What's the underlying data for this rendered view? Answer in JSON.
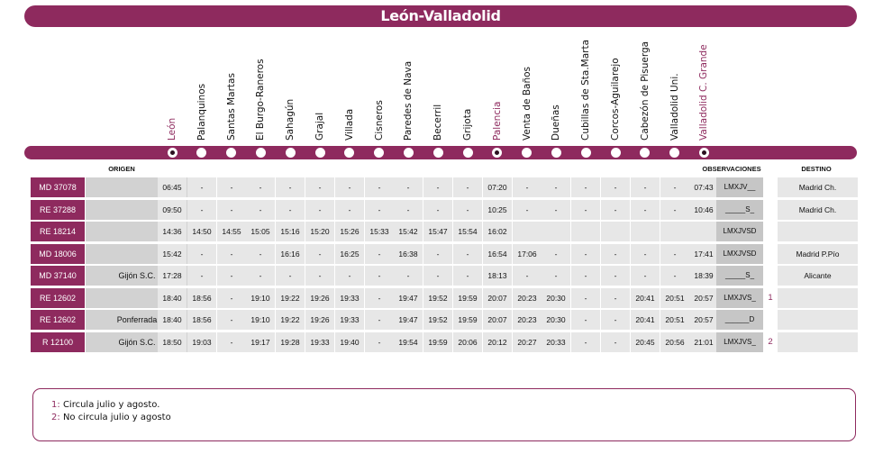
{
  "title": "León-Valladolid",
  "stations": [
    {
      "name": "León",
      "main": true
    },
    {
      "name": "Palanquinos",
      "main": false
    },
    {
      "name": "Santas Martas",
      "main": false
    },
    {
      "name": "El Burgo-Raneros",
      "main": false
    },
    {
      "name": "Sahagún",
      "main": false
    },
    {
      "name": "Grajal",
      "main": false
    },
    {
      "name": "Villada",
      "main": false
    },
    {
      "name": "Cisneros",
      "main": false
    },
    {
      "name": "Paredes de Nava",
      "main": false
    },
    {
      "name": "Becerril",
      "main": false
    },
    {
      "name": "Grijota",
      "main": false
    },
    {
      "name": "Palencia",
      "main": true
    },
    {
      "name": "Venta de Baños",
      "main": false
    },
    {
      "name": "Dueñas",
      "main": false
    },
    {
      "name": "Cubillas de Sta.Marta",
      "main": false
    },
    {
      "name": "Corcos-Aguilarejo",
      "main": false
    },
    {
      "name": "Cabezón de Pisuerga",
      "main": false
    },
    {
      "name": "Valladolid Uni.",
      "main": false
    },
    {
      "name": "Valladolid C. Grande",
      "main": true
    }
  ],
  "headers": {
    "origin": "ORIGEN",
    "observations": "OBSERVACIONES",
    "destination": "DESTINO"
  },
  "rows": [
    {
      "train": "MD 37078",
      "origin": "",
      "times": [
        "06:45",
        "-",
        "-",
        "-",
        "-",
        "-",
        "-",
        "-",
        "-",
        "-",
        "-",
        "07:20",
        "-",
        "-",
        "-",
        "-",
        "-",
        "-",
        "07:43"
      ],
      "obs": "LMXJV__",
      "note": "",
      "dest": "Madrid Ch."
    },
    {
      "train": "RE 37288",
      "origin": "",
      "times": [
        "09:50",
        "-",
        "-",
        "-",
        "-",
        "-",
        "-",
        "-",
        "-",
        "-",
        "-",
        "10:25",
        "-",
        "-",
        "-",
        "-",
        "-",
        "-",
        "10:46"
      ],
      "obs": "_____S_",
      "note": "",
      "dest": "Madrid Ch."
    },
    {
      "train": "RE 18214",
      "origin": "",
      "times": [
        "14:36",
        "14:50",
        "14:55",
        "15:05",
        "15:16",
        "15:20",
        "15:26",
        "15:33",
        "15:42",
        "15:47",
        "15:54",
        "16:02",
        "",
        "",
        "",
        "",
        "",
        "",
        ""
      ],
      "obs": "LMXJVSD",
      "note": "",
      "dest": ""
    },
    {
      "train": "MD 18006",
      "origin": "",
      "times": [
        "15:42",
        "-",
        "-",
        "-",
        "16:16",
        "-",
        "16:25",
        "-",
        "16:38",
        "-",
        "-",
        "16:54",
        "17:06",
        "-",
        "-",
        "-",
        "-",
        "-",
        "17:41"
      ],
      "obs": "LMXJVSD",
      "note": "",
      "dest": "Madrid P.Pío"
    },
    {
      "train": "MD 37140",
      "origin": "Gijón S.C.",
      "times": [
        "17:28",
        "-",
        "-",
        "-",
        "-",
        "-",
        "-",
        "-",
        "-",
        "-",
        "-",
        "18:13",
        "-",
        "-",
        "-",
        "-",
        "-",
        "-",
        "18:39"
      ],
      "obs": "_____S_",
      "note": "",
      "dest": "Alicante"
    },
    {
      "train": "RE 12602",
      "origin": "",
      "times": [
        "18:40",
        "18:56",
        "-",
        "19:10",
        "19:22",
        "19:26",
        "19:33",
        "-",
        "19:47",
        "19:52",
        "19:59",
        "20:07",
        "20:23",
        "20:30",
        "-",
        "-",
        "20:41",
        "20:51",
        "20:57"
      ],
      "obs": "LMXJVS_",
      "note": "1",
      "dest": ""
    },
    {
      "train": "RE 12602",
      "origin": "Ponferrada",
      "times": [
        "18:40",
        "18:56",
        "-",
        "19:10",
        "19:22",
        "19:26",
        "19:33",
        "-",
        "19:47",
        "19:52",
        "19:59",
        "20:07",
        "20:23",
        "20:30",
        "-",
        "-",
        "20:41",
        "20:51",
        "20:57"
      ],
      "obs": "______D",
      "note": "",
      "dest": ""
    },
    {
      "train": "R 12100",
      "origin": "Gijón S.C.",
      "times": [
        "18:50",
        "19:03",
        "-",
        "19:17",
        "19:28",
        "19:33",
        "19:40",
        "-",
        "19:54",
        "19:59",
        "20:06",
        "20:12",
        "20:27",
        "20:33",
        "-",
        "-",
        "20:45",
        "20:56",
        "21:01"
      ],
      "obs": "LMXJVS_",
      "note": "2",
      "dest": ""
    }
  ],
  "notes": [
    {
      "num": "1",
      "text": "Circula julio y agosto."
    },
    {
      "num": "2",
      "text": "No circula julio y agosto"
    }
  ]
}
